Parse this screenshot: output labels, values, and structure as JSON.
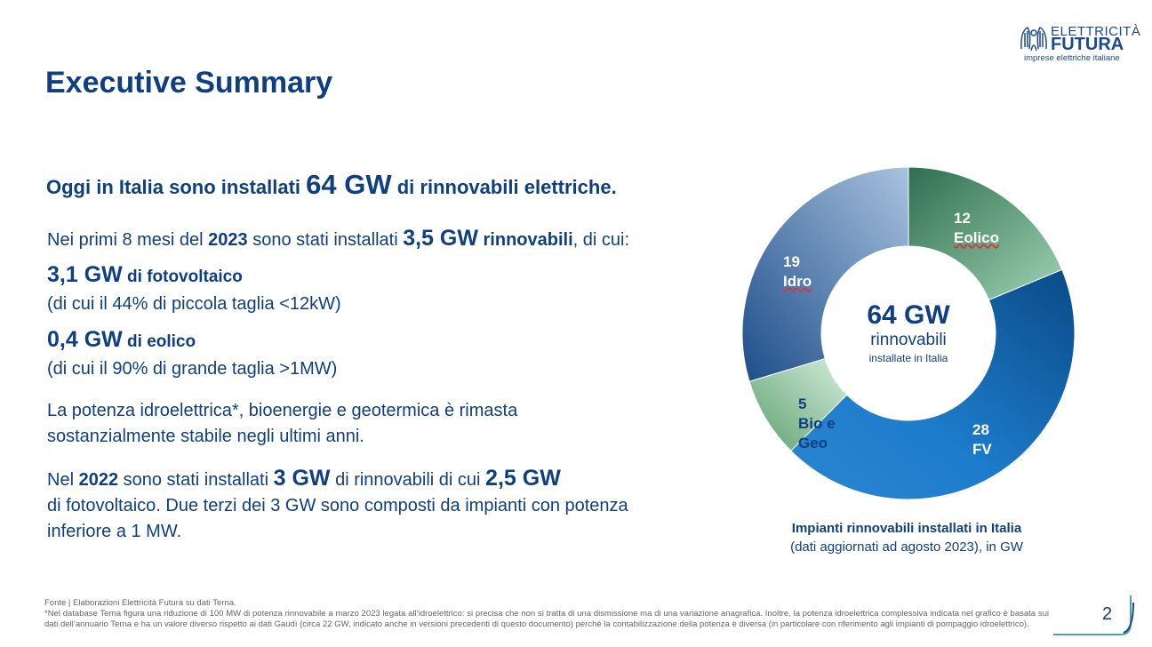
{
  "logo": {
    "line1": "ELETTRICITÀ",
    "line2": "FUTURA",
    "tagline": "imprese elettriche italiane"
  },
  "title": "Executive Summary",
  "headline": {
    "pre": "Oggi in Italia sono installati ",
    "value": "64 GW",
    "post": " di rinnovabili elettriche."
  },
  "para1": {
    "a": "Nei primi 8 mesi del ",
    "b": "2023",
    "c": " sono stati installati ",
    "d": "3,5 GW",
    "e": " rinnovabili",
    "f": ", di cui:"
  },
  "fv": {
    "value": "3,1 GW",
    "label": " di fotovoltaico",
    "note": "(di cui il 44% di piccola taglia <12kW)"
  },
  "eolico": {
    "value": "0,4 GW",
    "label": " di eolico",
    "note": "(di cui il 90% di grande taglia >1MW)"
  },
  "para2": {
    "line1": "La potenza idroelettrica*, bioenergie e geotermica è rimasta",
    "line2": "sostanzialmente stabile negli ultimi anni."
  },
  "para3": {
    "a": "Nel ",
    "b": "2022",
    "c": " sono stati installati ",
    "d": "3 GW",
    "e": " di rinnovabili di cui ",
    "f": "2,5 GW",
    "line2": "di fotovoltaico. Due terzi dei 3 GW sono composti da impianti con potenza",
    "line3": "inferiore a 1 MW."
  },
  "chart_data": {
    "type": "pie",
    "donut": true,
    "unit": "GW",
    "categories": [
      "Eolico",
      "FV",
      "Bio e Geo",
      "Idro"
    ],
    "values": [
      12,
      28,
      5,
      19
    ],
    "colors": [
      "#4e9a70",
      "#1a6fb8",
      "#8cc49c",
      "#4f7fb5"
    ],
    "center": {
      "value": "64 GW",
      "line1": "rinnovabili",
      "line2": "installate in Italia"
    },
    "caption_title": "Impianti rinnovabili installati in Italia",
    "caption_sub": "(dati aggiornati ad agosto 2023), in GW"
  },
  "chart_labels": {
    "eolico": {
      "value": "12",
      "name": "Eolico"
    },
    "fv": {
      "value": "28",
      "name": "FV"
    },
    "bio": {
      "value": "5",
      "name1": "Bio e",
      "name2": "Geo"
    },
    "idro": {
      "value": "19",
      "name": "Idro"
    }
  },
  "footer": {
    "source": "Fonte | Elaborazioni Elettricità Futura su dati Terna.",
    "note": "*Nel database Terna figura una riduzione di 100 MW di potenza rinnovabile a marzo 2023 legata all’idroelettrico: si precisa che non si tratta di una dismissione ma di una variazione anagrafica. Inoltre, la potenza idroelettrica complessiva indicata nel grafico è basata sui dati dell’annuario Terna e ha un valore diverso rispetto ai dati Gaudì (circa 22 GW, indicato anche in versioni precedenti di questo documento) perché la contabilizzazione della potenza è diversa (in particolare con riferimento agli impianti di pompaggio idroelettrico)."
  },
  "page_number": "2"
}
